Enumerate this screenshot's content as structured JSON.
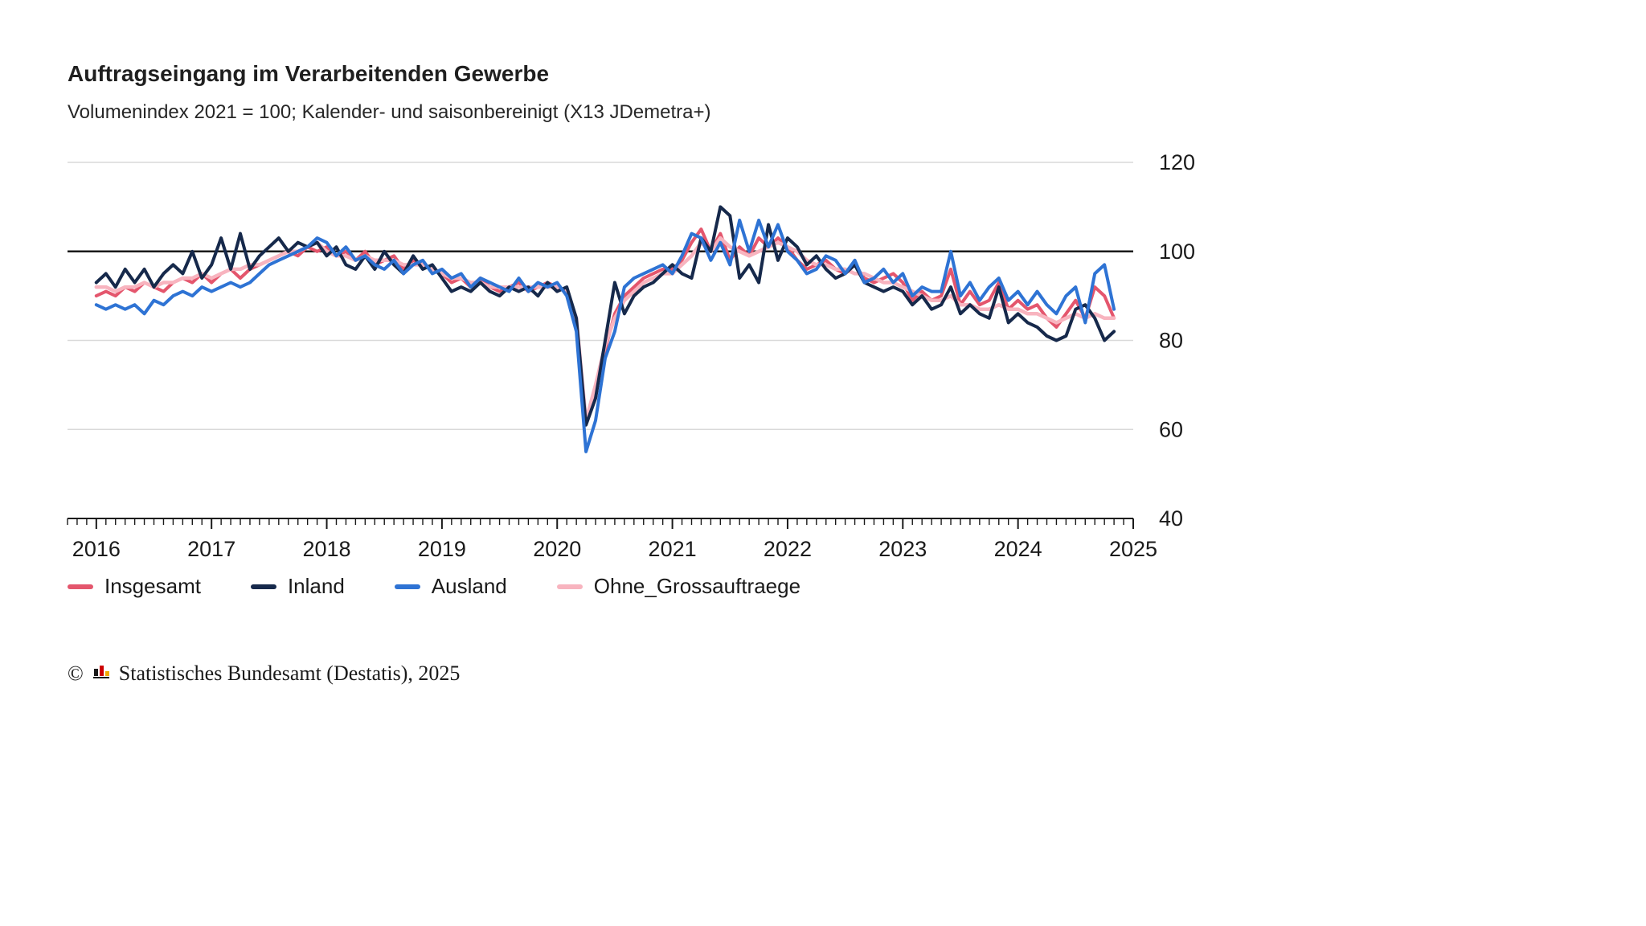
{
  "header": {
    "title": "Auftragseingang im Verarbeitenden Gewerbe",
    "subtitle": "Volumenindex 2021 = 100; Kalender- und saisonbereinigt (X13 JDemetra+)"
  },
  "chart_data": {
    "type": "line",
    "title": "Auftragseingang im Verarbeitenden Gewerbe",
    "subtitle": "Volumenindex 2021 = 100; Kalender- und saisonbereinigt (X13 JDemetra+)",
    "grid": "horizontal",
    "legend_position": "bottom",
    "reference_line": 100,
    "x_axis": {
      "ticks": [
        "2016",
        "2017",
        "2018",
        "2019",
        "2020",
        "2021",
        "2022",
        "2023",
        "2024",
        "2025"
      ],
      "frequency": "monthly",
      "first_point": "2016-01",
      "last_point": "2024-11"
    },
    "y_axis": {
      "min": 40,
      "max": 120,
      "ticks": [
        120,
        100,
        80,
        60,
        40
      ]
    },
    "series": [
      {
        "name": "Insgesamt",
        "color": "#e4566d",
        "values": [
          90,
          91,
          90,
          92,
          91,
          93,
          92,
          91,
          93,
          94,
          93,
          95,
          93,
          95,
          96,
          94,
          96,
          97,
          98,
          99,
          100,
          99,
          101,
          100,
          101,
          99,
          100,
          98,
          100,
          97,
          98,
          99,
          96,
          98,
          97,
          96,
          95,
          93,
          94,
          92,
          94,
          92,
          91,
          92,
          93,
          91,
          92,
          93,
          92,
          91,
          84,
          62,
          68,
          78,
          86,
          90,
          92,
          94,
          95,
          96,
          96,
          98,
          102,
          105,
          100,
          104,
          98,
          101,
          99,
          103,
          101,
          103,
          101,
          98,
          96,
          97,
          98,
          96,
          95,
          97,
          94,
          93,
          94,
          95,
          93,
          89,
          91,
          89,
          90,
          96,
          88,
          91,
          88,
          89,
          93,
          87,
          89,
          87,
          88,
          85,
          83,
          86,
          89,
          85,
          92,
          90,
          85
        ]
      },
      {
        "name": "Inland",
        "color": "#16294b",
        "values": [
          93,
          95,
          92,
          96,
          93,
          96,
          92,
          95,
          97,
          95,
          100,
          94,
          97,
          103,
          96,
          104,
          96,
          99,
          101,
          103,
          100,
          102,
          101,
          102,
          99,
          101,
          97,
          96,
          99,
          96,
          100,
          97,
          95,
          99,
          96,
          97,
          94,
          91,
          92,
          91,
          93,
          91,
          90,
          92,
          91,
          92,
          90,
          93,
          91,
          92,
          85,
          61,
          67,
          80,
          93,
          86,
          90,
          92,
          93,
          95,
          97,
          95,
          94,
          103,
          100,
          110,
          108,
          94,
          97,
          93,
          106,
          98,
          103,
          101,
          97,
          99,
          96,
          94,
          95,
          97,
          93,
          92,
          91,
          92,
          91,
          88,
          90,
          87,
          88,
          92,
          86,
          88,
          86,
          85,
          92,
          84,
          86,
          84,
          83,
          81,
          80,
          81,
          87,
          88,
          85,
          80,
          82
        ]
      },
      {
        "name": "Ausland",
        "color": "#2e73d4",
        "values": [
          88,
          87,
          88,
          87,
          88,
          86,
          89,
          88,
          90,
          91,
          90,
          92,
          91,
          92,
          93,
          92,
          93,
          95,
          97,
          98,
          99,
          100,
          101,
          103,
          102,
          99,
          101,
          98,
          99,
          97,
          96,
          98,
          95,
          97,
          98,
          95,
          96,
          94,
          95,
          92,
          94,
          93,
          92,
          91,
          94,
          91,
          93,
          92,
          93,
          90,
          82,
          55,
          62,
          76,
          82,
          92,
          94,
          95,
          96,
          97,
          95,
          99,
          104,
          103,
          98,
          102,
          97,
          107,
          100,
          107,
          101,
          106,
          100,
          98,
          95,
          96,
          99,
          98,
          95,
          98,
          93,
          94,
          96,
          93,
          95,
          90,
          92,
          91,
          91,
          100,
          90,
          93,
          89,
          92,
          94,
          89,
          91,
          88,
          91,
          88,
          86,
          90,
          92,
          84,
          95,
          97,
          87
        ]
      },
      {
        "name": "Ohne_Grossauftraege",
        "color": "#f8b4bf",
        "values": [
          92,
          92,
          91,
          92,
          92,
          93,
          92,
          93,
          93,
          94,
          94,
          95,
          94,
          95,
          96,
          96,
          97,
          97,
          98,
          99,
          100,
          100,
          101,
          102,
          100,
          99,
          99,
          98,
          99,
          98,
          98,
          98,
          97,
          97,
          97,
          96,
          95,
          94,
          94,
          93,
          93,
          92,
          92,
          92,
          92,
          92,
          92,
          92,
          92,
          91,
          85,
          62,
          70,
          79,
          85,
          89,
          91,
          93,
          94,
          95,
          95,
          97,
          99,
          102,
          100,
          103,
          101,
          100,
          99,
          100,
          101,
          102,
          101,
          100,
          98,
          97,
          97,
          96,
          96,
          95,
          95,
          94,
          93,
          93,
          92,
          91,
          90,
          89,
          89,
          90,
          88,
          88,
          87,
          87,
          88,
          87,
          87,
          86,
          86,
          85,
          84,
          85,
          86,
          85,
          86,
          85,
          85
        ]
      }
    ],
    "colors": {
      "grid": "#d9d9d9",
      "reference_line": "#1a1a1a",
      "axis": "#1a1a1a",
      "text": "#1a1a1a"
    }
  },
  "footer": {
    "copyright": "©",
    "text": "Statistisches Bundesamt (Destatis), 2025"
  }
}
